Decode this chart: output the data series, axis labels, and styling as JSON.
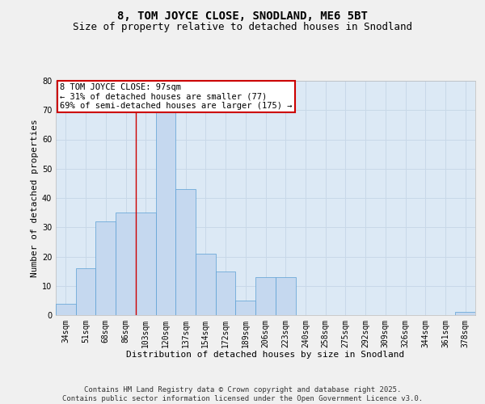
{
  "title": "8, TOM JOYCE CLOSE, SNODLAND, ME6 5BT",
  "subtitle": "Size of property relative to detached houses in Snodland",
  "xlabel": "Distribution of detached houses by size in Snodland",
  "ylabel": "Number of detached properties",
  "categories": [
    "34sqm",
    "51sqm",
    "68sqm",
    "86sqm",
    "103sqm",
    "120sqm",
    "137sqm",
    "154sqm",
    "172sqm",
    "189sqm",
    "206sqm",
    "223sqm",
    "240sqm",
    "258sqm",
    "275sqm",
    "292sqm",
    "309sqm",
    "326sqm",
    "344sqm",
    "361sqm",
    "378sqm"
  ],
  "values": [
    4,
    16,
    32,
    35,
    35,
    70,
    43,
    21,
    15,
    5,
    13,
    13,
    0,
    0,
    0,
    0,
    0,
    0,
    0,
    0,
    1
  ],
  "bar_color": "#c5d8ef",
  "bar_edge_color": "#5a9fd4",
  "grid_color": "#c8d8e8",
  "background_color": "#dce9f5",
  "fig_background_color": "#f0f0f0",
  "annotation_box_text": "8 TOM JOYCE CLOSE: 97sqm\n← 31% of detached houses are smaller (77)\n69% of semi-detached houses are larger (175) →",
  "annotation_box_color": "#cc0000",
  "red_line_x": 3.5,
  "ylim": [
    0,
    80
  ],
  "yticks": [
    0,
    10,
    20,
    30,
    40,
    50,
    60,
    70,
    80
  ],
  "footer": "Contains HM Land Registry data © Crown copyright and database right 2025.\nContains public sector information licensed under the Open Government Licence v3.0.",
  "title_fontsize": 10,
  "subtitle_fontsize": 9,
  "xlabel_fontsize": 8,
  "ylabel_fontsize": 8,
  "tick_fontsize": 7,
  "annotation_fontsize": 7.5,
  "footer_fontsize": 6.5
}
